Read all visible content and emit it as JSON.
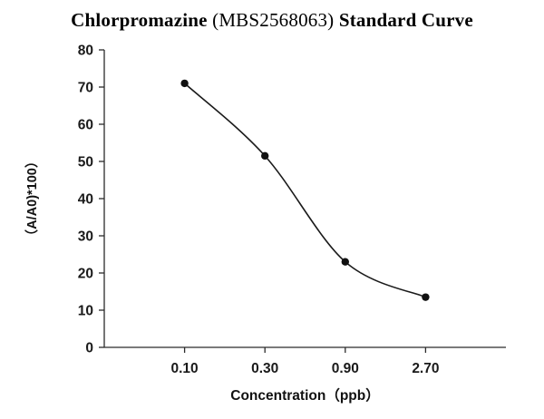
{
  "chart_data": {
    "type": "line",
    "title": {
      "main": "Chlorpromazine",
      "code": " (MBS2568063) ",
      "suffix": "Standard Curve"
    },
    "xlabel": "Concentration（ppb）",
    "ylabel": "（A/A0)*100）",
    "x_categories": [
      "0.10",
      "0.30",
      "0.90",
      "2.70"
    ],
    "values": [
      71,
      51.5,
      23,
      13.5
    ],
    "ylim": [
      0,
      80
    ],
    "ytick_step": 10,
    "yticks": [
      0,
      10,
      20,
      30,
      40,
      50,
      60,
      70,
      80
    ],
    "line_color": "#1a1a1a",
    "marker_color": "#111111",
    "axis_color": "#2b2b2b",
    "grid": "off",
    "legend": "none"
  }
}
